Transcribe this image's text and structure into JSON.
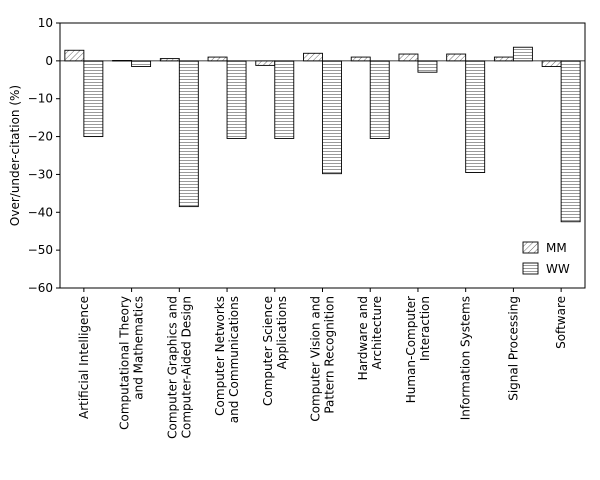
{
  "chart_data": {
    "type": "bar",
    "title": "",
    "xlabel": "",
    "ylabel": "Over/under-citation (%)",
    "ylim": [
      -60,
      10
    ],
    "yticks": [
      10,
      0,
      -10,
      -20,
      -30,
      -40,
      -50,
      -60
    ],
    "ytick_labels": [
      "10",
      "0",
      "−10",
      "−20",
      "−30",
      "−40",
      "−50",
      "−60"
    ],
    "categories": [
      [
        "Artificial Intelligence"
      ],
      [
        "Computational Theory",
        "and Mathematics"
      ],
      [
        "Computer Graphics and",
        "Computer-Aided Design"
      ],
      [
        "Computer Networks",
        "and Communications"
      ],
      [
        "Computer Science",
        "Applications"
      ],
      [
        "Computer Vision and",
        "Pattern Recognition"
      ],
      [
        "Hardware and",
        "Architecture"
      ],
      [
        "Human-Computer",
        "Interaction"
      ],
      [
        "Information Systems"
      ],
      [
        "Signal Processing"
      ],
      [
        "Software"
      ]
    ],
    "series": [
      {
        "name": "MM",
        "hatch": "diagonal",
        "values": [
          2.8,
          0.1,
          0.6,
          1.0,
          -1.2,
          2.0,
          1.0,
          1.8,
          1.8,
          1.0,
          -1.5
        ]
      },
      {
        "name": "WW",
        "hatch": "horizontal",
        "values": [
          -20.0,
          -1.5,
          -38.5,
          -20.5,
          -20.5,
          -29.8,
          -20.5,
          -3.0,
          -29.5,
          3.6,
          -42.5
        ]
      }
    ],
    "legend_position": "lower-right",
    "grid": false
  }
}
